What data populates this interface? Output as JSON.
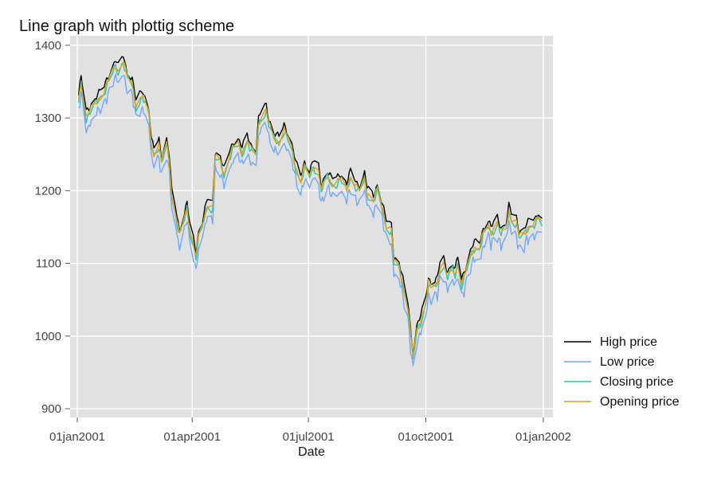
{
  "chart_data": {
    "type": "line",
    "title": "Line graph with plottig scheme",
    "xlabel": "Date",
    "ylabel": "",
    "x_ticks": [
      "01jan2001",
      "01apr2001",
      "01jul2001",
      "01oct2001",
      "01jan2002"
    ],
    "y_ticks": [
      "900",
      "1000",
      "1100",
      "1200",
      "1300",
      "1400"
    ],
    "xlim": [
      "2001-01-01",
      "2002-01-01"
    ],
    "ylim": [
      888,
      1413
    ],
    "grid": true,
    "legend_position": "right",
    "background_color": "#e1e1e1",
    "grid_color": "#ffffff",
    "anchors": [
      [
        "2001-01-02",
        1322
      ],
      [
        "2001-01-04",
        1348
      ],
      [
        "2001-01-08",
        1300
      ],
      [
        "2001-01-10",
        1305
      ],
      [
        "2001-01-16",
        1320
      ],
      [
        "2001-01-22",
        1335
      ],
      [
        "2001-01-24",
        1345
      ],
      [
        "2001-01-31",
        1370
      ],
      [
        "2001-02-02",
        1362
      ],
      [
        "2001-02-06",
        1378
      ],
      [
        "2001-02-09",
        1355
      ],
      [
        "2001-02-13",
        1345
      ],
      [
        "2001-02-16",
        1315
      ],
      [
        "2001-02-21",
        1330
      ],
      [
        "2001-02-26",
        1305
      ],
      [
        "2001-02-28",
        1260
      ],
      [
        "2001-03-02",
        1250
      ],
      [
        "2001-03-06",
        1262
      ],
      [
        "2001-03-08",
        1238
      ],
      [
        "2001-03-12",
        1262
      ],
      [
        "2001-03-14",
        1240
      ],
      [
        "2001-03-16",
        1190
      ],
      [
        "2001-03-19",
        1168
      ],
      [
        "2001-03-22",
        1138
      ],
      [
        "2001-03-26",
        1160
      ],
      [
        "2001-03-28",
        1175
      ],
      [
        "2001-03-30",
        1145
      ],
      [
        "2001-04-02",
        1125
      ],
      [
        "2001-04-04",
        1108
      ],
      [
        "2001-04-06",
        1135
      ],
      [
        "2001-04-09",
        1150
      ],
      [
        "2001-04-11",
        1165
      ],
      [
        "2001-04-13",
        1180
      ],
      [
        "2001-04-17",
        1175
      ],
      [
        "2001-04-19",
        1245
      ],
      [
        "2001-04-23",
        1238
      ],
      [
        "2001-04-26",
        1220
      ],
      [
        "2001-04-30",
        1245
      ],
      [
        "2001-05-03",
        1258
      ],
      [
        "2001-05-07",
        1262
      ],
      [
        "2001-05-10",
        1250
      ],
      [
        "2001-05-14",
        1268
      ],
      [
        "2001-05-17",
        1255
      ],
      [
        "2001-05-21",
        1248
      ],
      [
        "2001-05-23",
        1290
      ],
      [
        "2001-05-25",
        1300
      ],
      [
        "2001-05-29",
        1310
      ],
      [
        "2001-05-31",
        1290
      ],
      [
        "2001-06-04",
        1270
      ],
      [
        "2001-06-08",
        1265
      ],
      [
        "2001-06-12",
        1283
      ],
      [
        "2001-06-15",
        1270
      ],
      [
        "2001-06-18",
        1255
      ],
      [
        "2001-06-21",
        1230
      ],
      [
        "2001-06-25",
        1212
      ],
      [
        "2001-06-28",
        1232
      ],
      [
        "2001-07-02",
        1218
      ],
      [
        "2001-07-05",
        1232
      ],
      [
        "2001-07-09",
        1225
      ],
      [
        "2001-07-11",
        1200
      ],
      [
        "2001-07-16",
        1218
      ],
      [
        "2001-07-19",
        1208
      ],
      [
        "2001-07-23",
        1210
      ],
      [
        "2001-07-26",
        1215
      ],
      [
        "2001-07-31",
        1200
      ],
      [
        "2001-08-03",
        1218
      ],
      [
        "2001-08-07",
        1205
      ],
      [
        "2001-08-10",
        1198
      ],
      [
        "2001-08-14",
        1215
      ],
      [
        "2001-08-16",
        1195
      ],
      [
        "2001-08-21",
        1185
      ],
      [
        "2001-08-24",
        1200
      ],
      [
        "2001-08-28",
        1172
      ],
      [
        "2001-08-31",
        1150
      ],
      [
        "2001-09-04",
        1145
      ],
      [
        "2001-09-06",
        1100
      ],
      [
        "2001-09-10",
        1092
      ],
      [
        "2001-09-17",
        1038
      ],
      [
        "2001-09-20",
        985
      ],
      [
        "2001-09-21",
        968
      ],
      [
        "2001-09-24",
        1005
      ],
      [
        "2001-09-27",
        1018
      ],
      [
        "2001-10-01",
        1045
      ],
      [
        "2001-10-03",
        1072
      ],
      [
        "2001-10-05",
        1065
      ],
      [
        "2001-10-10",
        1070
      ],
      [
        "2001-10-12",
        1092
      ],
      [
        "2001-10-15",
        1098
      ],
      [
        "2001-10-18",
        1080
      ],
      [
        "2001-10-22",
        1090
      ],
      [
        "2001-10-24",
        1082
      ],
      [
        "2001-10-26",
        1100
      ],
      [
        "2001-10-29",
        1070
      ],
      [
        "2001-11-01",
        1085
      ],
      [
        "2001-11-05",
        1108
      ],
      [
        "2001-11-08",
        1120
      ],
      [
        "2001-11-12",
        1120
      ],
      [
        "2001-11-15",
        1140
      ],
      [
        "2001-11-19",
        1150
      ],
      [
        "2001-11-21",
        1140
      ],
      [
        "2001-11-26",
        1155
      ],
      [
        "2001-11-29",
        1140
      ],
      [
        "2001-12-03",
        1148
      ],
      [
        "2001-12-05",
        1170
      ],
      [
        "2001-12-07",
        1160
      ],
      [
        "2001-12-11",
        1155
      ],
      [
        "2001-12-13",
        1135
      ],
      [
        "2001-12-17",
        1138
      ],
      [
        "2001-12-19",
        1145
      ],
      [
        "2001-12-21",
        1150
      ],
      [
        "2001-12-26",
        1155
      ],
      [
        "2001-12-28",
        1162
      ],
      [
        "2001-12-31",
        1152
      ]
    ],
    "series": [
      {
        "name": "High price",
        "color": "#000000",
        "offset": 9
      },
      {
        "name": "Low price",
        "color": "#6fa8ff",
        "offset": -12
      },
      {
        "name": "Closing price",
        "color": "#2ec4a5",
        "offset": 0
      },
      {
        "name": "Opening price",
        "color": "#d9a21a",
        "offset": 2
      }
    ]
  }
}
